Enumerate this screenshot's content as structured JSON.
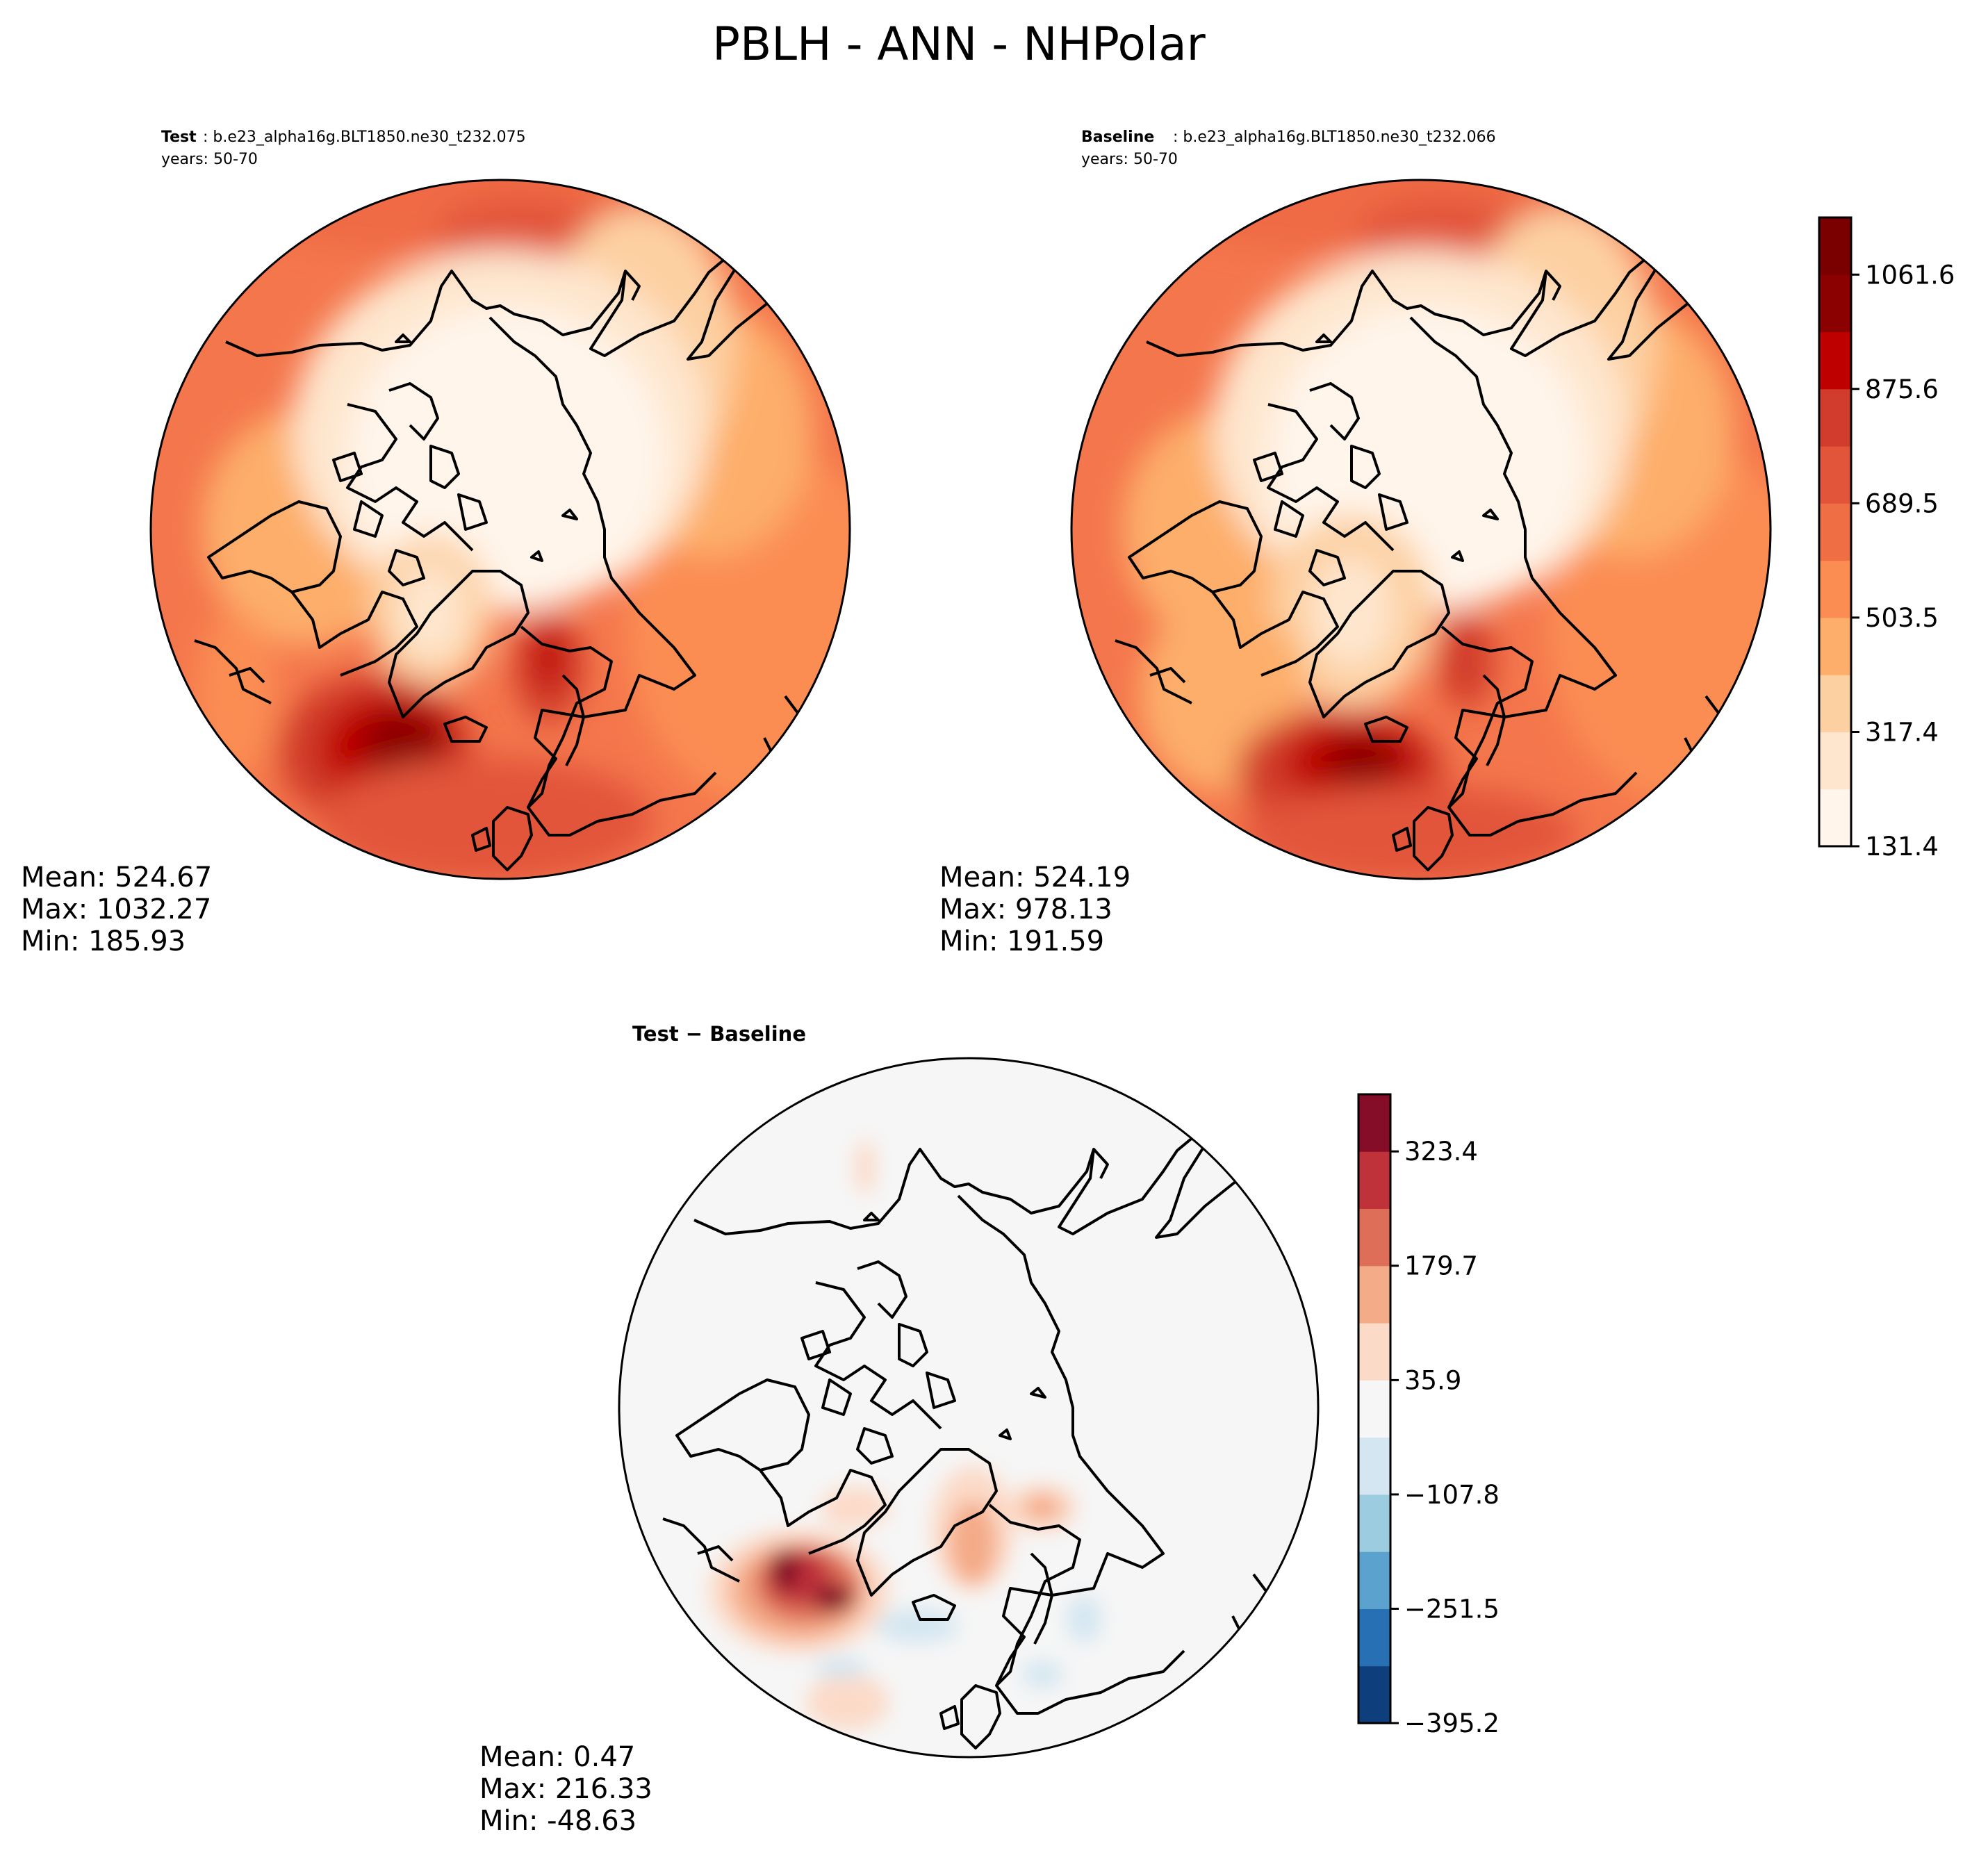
{
  "figure": {
    "title": "PBLH - ANN - NHPolar"
  },
  "panels": {
    "test": {
      "label": "Test",
      "case": ": b.e23_alpha16g.BLT1850.ne30_t232.075",
      "years": "years: 50-70",
      "stats": {
        "mean": "Mean: 524.67",
        "max": "Max: 1032.27",
        "min": "Min: 185.93"
      }
    },
    "baseline": {
      "label": "Baseline",
      "case": ": b.e23_alpha16g.BLT1850.ne30_t232.066",
      "years": "years: 50-70",
      "stats": {
        "mean": "Mean: 524.19",
        "max": "Max: 978.13",
        "min": "Min: 191.59"
      }
    },
    "diff": {
      "title": "Test − Baseline",
      "stats": {
        "mean": "Mean:  0.47",
        "max": "Max: 216.33",
        "min": "Min: -48.63"
      }
    }
  },
  "chart_data": [
    {
      "type": "heatmap",
      "panel": "test",
      "projection": "north-polar-stereographic",
      "region": "NHPolar",
      "mean": 524.67,
      "max": 1032.27,
      "min": 185.93
    },
    {
      "type": "heatmap",
      "panel": "baseline",
      "projection": "north-polar-stereographic",
      "region": "NHPolar",
      "mean": 524.19,
      "max": 978.13,
      "min": 191.59
    },
    {
      "type": "heatmap",
      "panel": "diff",
      "projection": "north-polar-stereographic",
      "region": "NHPolar",
      "mean": 0.47,
      "max": 216.33,
      "min": -48.63
    }
  ],
  "colorbars": {
    "main": {
      "range": [
        131.4,
        1154.6
      ],
      "ticks": [
        131.4,
        317.4,
        503.5,
        689.5,
        875.6,
        1061.6
      ],
      "tick_labels": [
        "131.4",
        "317.4",
        "503.5",
        "689.5",
        "875.6",
        "1061.6"
      ],
      "colors": [
        "#fff5eb",
        "#fee6ce",
        "#fdd0a2",
        "#fdae6b",
        "#fb8d52",
        "#f06e44",
        "#e2553a",
        "#d13c2c",
        "#bf0000",
        "#8b0000",
        "#7a0000"
      ]
    },
    "diff": {
      "range": [
        -395.2,
        395.2
      ],
      "ticks": [
        -395.2,
        -251.5,
        -107.8,
        35.9,
        179.7,
        323.4
      ],
      "tick_labels": [
        "−395.2",
        "−251.5",
        "−107.8",
        "35.9",
        "179.7",
        "323.4"
      ],
      "colors": [
        "#0e3f7c",
        "#2870b4",
        "#5ca2cf",
        "#9cccdf",
        "#d4e6f1",
        "#f6f6f6",
        "#fcdac8",
        "#f4ab88",
        "#de6e58",
        "#c0323a",
        "#850d27"
      ]
    }
  }
}
